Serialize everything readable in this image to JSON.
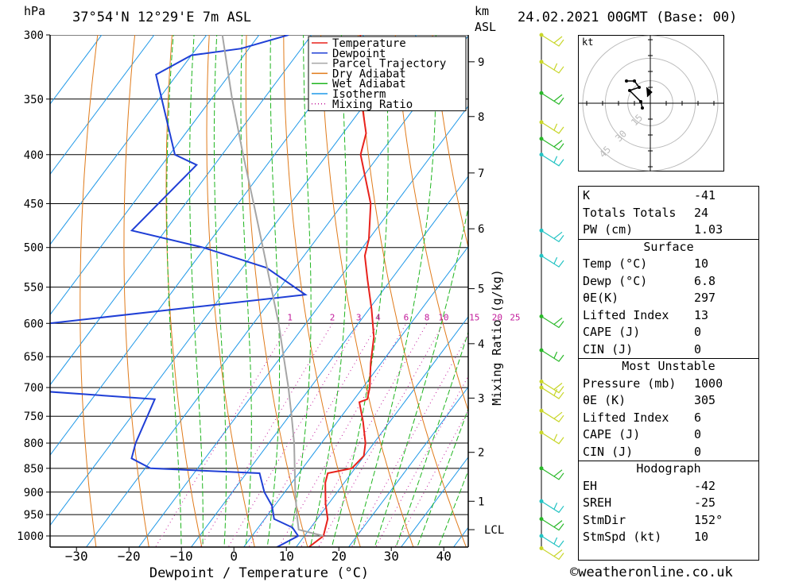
{
  "header": {
    "units_left": "hPa",
    "location": "37°54'N 12°29'E 7m ASL",
    "units_right_1": "km",
    "units_right_2": "ASL",
    "datetime": "24.02.2021 00GMT (Base: 00)"
  },
  "footer": {
    "credit": "©weatheronline.co.uk"
  },
  "chart_data": {
    "type": "line",
    "title": "",
    "xlabel": "Dewpoint / Temperature (°C)",
    "ylabel": "hPa",
    "y2label": "Mixing Ratio (g/kg)",
    "log_p": true,
    "skew": true,
    "xlim": [
      -38,
      41
    ],
    "plim": [
      1060,
      300
    ],
    "pressure_ticks": [
      300,
      350,
      400,
      450,
      500,
      550,
      600,
      650,
      700,
      750,
      800,
      850,
      900,
      950,
      1000
    ],
    "temp_ticks": [
      -30,
      -20,
      -10,
      0,
      10,
      20,
      30,
      40
    ],
    "km_ticks": [
      {
        "label": "9",
        "p": 320
      },
      {
        "label": "8",
        "p": 365
      },
      {
        "label": "7",
        "p": 418
      },
      {
        "label": "6",
        "p": 478
      },
      {
        "label": "5",
        "p": 552
      },
      {
        "label": "4",
        "p": 630
      },
      {
        "label": "3",
        "p": 718
      },
      {
        "label": "2",
        "p": 818
      },
      {
        "label": "1",
        "p": 920
      },
      {
        "label": "LCL",
        "p": 985
      }
    ],
    "mixing_ratio_labels": [
      "1",
      "2",
      "3",
      "4",
      "6",
      "8",
      "10",
      "15",
      "20",
      "25"
    ],
    "mixing_ratio_values": [
      1,
      2,
      3,
      4,
      6,
      8,
      10,
      15,
      20,
      25
    ],
    "legend": {
      "placement": "top",
      "entries": [
        {
          "name": "Temperature",
          "color": "#e8221c",
          "style": "solid"
        },
        {
          "name": "Dewpoint",
          "color": "#1f3fd6",
          "style": "solid"
        },
        {
          "name": "Parcel Trajectory",
          "color": "#a6a6a6",
          "style": "solid"
        },
        {
          "name": "Dry Adiabat",
          "color": "#e07b1b",
          "style": "solid"
        },
        {
          "name": "Wet Adiabat",
          "color": "#1fb51f",
          "style": "solid"
        },
        {
          "name": "Isotherm",
          "color": "#1f98e8",
          "style": "solid"
        },
        {
          "name": "Mixing Ratio",
          "color": "#c21b9a",
          "style": "dotted"
        }
      ]
    },
    "series": [
      {
        "name": "Temperature",
        "points": [
          {
            "p": 1030,
            "t": 12.3
          },
          {
            "p": 1000,
            "t": 13.6
          },
          {
            "p": 960,
            "t": 12.0
          },
          {
            "p": 925,
            "t": 9.4
          },
          {
            "p": 880,
            "t": 6.4
          },
          {
            "p": 860,
            "t": 5.5
          },
          {
            "p": 850,
            "t": 9.4
          },
          {
            "p": 825,
            "t": 9.9
          },
          {
            "p": 800,
            "t": 8.4
          },
          {
            "p": 760,
            "t": 4.9
          },
          {
            "p": 725,
            "t": 1.4
          },
          {
            "p": 720,
            "t": 2.5
          },
          {
            "p": 700,
            "t": 1.3
          },
          {
            "p": 660,
            "t": -2.0
          },
          {
            "p": 620,
            "t": -5.1
          },
          {
            "p": 580,
            "t": -9.5
          },
          {
            "p": 540,
            "t": -14.5
          },
          {
            "p": 510,
            "t": -18.4
          },
          {
            "p": 490,
            "t": -20.0
          },
          {
            "p": 450,
            "t": -24.7
          },
          {
            "p": 400,
            "t": -33.6
          },
          {
            "p": 380,
            "t": -35.6
          },
          {
            "p": 350,
            "t": -41.4
          },
          {
            "p": 320,
            "t": -46.9
          },
          {
            "p": 300,
            "t": -50.7
          }
        ]
      },
      {
        "name": "Dewpoint",
        "points": [
          {
            "p": 1030,
            "t": 6.1
          },
          {
            "p": 1000,
            "t": 8.8
          },
          {
            "p": 980,
            "t": 6.5
          },
          {
            "p": 960,
            "t": 1.8
          },
          {
            "p": 930,
            "t": -0.5
          },
          {
            "p": 900,
            "t": -3.9
          },
          {
            "p": 860,
            "t": -7.5
          },
          {
            "p": 850,
            "t": -29.0
          },
          {
            "p": 830,
            "t": -34.0
          },
          {
            "p": 800,
            "t": -35.4
          },
          {
            "p": 720,
            "t": -38.0
          },
          {
            "p": 700,
            "t": -71.0
          },
          {
            "p": 620,
            "t": -73.0
          },
          {
            "p": 600,
            "t": -69.0
          },
          {
            "p": 560,
            "t": -24.2
          },
          {
            "p": 525,
            "t": -35.4
          },
          {
            "p": 500,
            "t": -50.4
          },
          {
            "p": 480,
            "t": -66.4
          },
          {
            "p": 410,
            "t": -63.4
          },
          {
            "p": 400,
            "t": -69.0
          },
          {
            "p": 330,
            "t": -84.0
          },
          {
            "p": 315,
            "t": -80.0
          },
          {
            "p": 310,
            "t": -71.5
          },
          {
            "p": 300,
            "t": -64.4
          }
        ]
      },
      {
        "name": "Parcel Trajectory",
        "points": [
          {
            "p": 1000,
            "t": 13.6
          },
          {
            "p": 985,
            "t": 8.0
          },
          {
            "p": 950,
            "t": 5.5
          },
          {
            "p": 900,
            "t": 2.0
          },
          {
            "p": 850,
            "t": -1.5
          },
          {
            "p": 800,
            "t": -5.2
          },
          {
            "p": 750,
            "t": -9.5
          },
          {
            "p": 700,
            "t": -14.2
          },
          {
            "p": 650,
            "t": -19.5
          },
          {
            "p": 600,
            "t": -25.2
          },
          {
            "p": 550,
            "t": -31.8
          },
          {
            "p": 500,
            "t": -39.0
          },
          {
            "p": 450,
            "t": -47.0
          },
          {
            "p": 400,
            "t": -56.0
          },
          {
            "p": 350,
            "t": -66.0
          },
          {
            "p": 300,
            "t": -77.0
          }
        ]
      }
    ],
    "wind_barbs": [
      {
        "p": 300,
        "color": "yellow"
      },
      {
        "p": 320,
        "color": "yellow"
      },
      {
        "p": 345,
        "color": "green"
      },
      {
        "p": 370,
        "color": "yellow"
      },
      {
        "p": 385,
        "color": "green"
      },
      {
        "p": 400,
        "color": "cyan"
      },
      {
        "p": 480,
        "color": "cyan"
      },
      {
        "p": 510,
        "color": "cyan"
      },
      {
        "p": 590,
        "color": "green"
      },
      {
        "p": 640,
        "color": "green"
      },
      {
        "p": 690,
        "color": "yellow"
      },
      {
        "p": 700,
        "color": "yellow"
      },
      {
        "p": 740,
        "color": "yellow"
      },
      {
        "p": 780,
        "color": "yellow"
      },
      {
        "p": 850,
        "color": "green"
      },
      {
        "p": 920,
        "color": "cyan"
      },
      {
        "p": 960,
        "color": "green"
      },
      {
        "p": 1000,
        "color": "cyan"
      },
      {
        "p": 1030,
        "color": "yellow"
      }
    ]
  },
  "hodograph": {
    "units": "kt",
    "ring_labels": [
      "15",
      "30",
      "45"
    ],
    "ring_values": [
      15,
      30,
      45
    ]
  },
  "indices": {
    "rows": [
      {
        "label": "K",
        "value": "-41"
      },
      {
        "label": "Totals Totals",
        "value": "24"
      },
      {
        "label": "PW (cm)",
        "value": "1.03"
      }
    ],
    "surface": {
      "title": "Surface",
      "rows": [
        {
          "label": "Temp (°C)",
          "value": "10"
        },
        {
          "label": "Dewp (°C)",
          "value": "6.8"
        },
        {
          "label": "θE(K)",
          "value": "297"
        },
        {
          "label": "Lifted Index",
          "value": "13"
        },
        {
          "label": "CAPE (J)",
          "value": "0"
        },
        {
          "label": "CIN (J)",
          "value": "0"
        }
      ]
    },
    "most_unstable": {
      "title": "Most Unstable",
      "rows": [
        {
          "label": "Pressure (mb)",
          "value": "1000"
        },
        {
          "label": "θE (K)",
          "value": "305"
        },
        {
          "label": "Lifted Index",
          "value": "6"
        },
        {
          "label": "CAPE (J)",
          "value": "0"
        },
        {
          "label": "CIN (J)",
          "value": "0"
        }
      ]
    },
    "hodograph": {
      "title": "Hodograph",
      "rows": [
        {
          "label": "EH",
          "value": "-42"
        },
        {
          "label": "SREH",
          "value": "-25"
        },
        {
          "label": "StmDir",
          "value": "152°"
        },
        {
          "label": "StmSpd (kt)",
          "value": "10"
        }
      ]
    }
  }
}
